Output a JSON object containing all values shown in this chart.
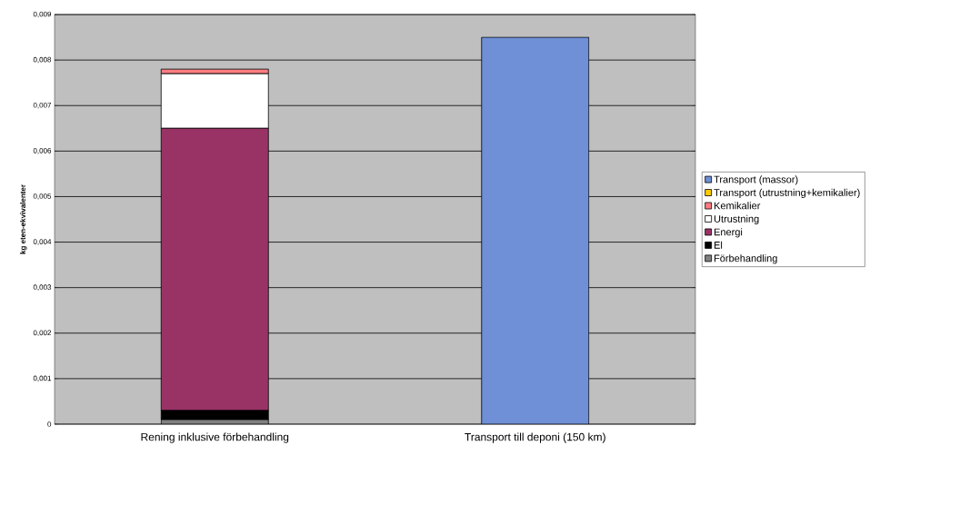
{
  "chart_data": {
    "type": "bar",
    "stacked": true,
    "ylabel": "kg eten-ekvivalenter",
    "categories": [
      "Rening inklusive förbehandling",
      "Transport till deponi (150 km)"
    ],
    "series": [
      {
        "name": "Förbehandling",
        "color": "#808080",
        "values": [
          0.0001,
          null
        ]
      },
      {
        "name": "El",
        "color": "#000000",
        "values": [
          0.0002,
          null
        ]
      },
      {
        "name": "Energi",
        "color": "#993366",
        "values": [
          0.0062,
          null
        ]
      },
      {
        "name": "Utrustning",
        "color": "#ffffff",
        "values": [
          0.0012,
          null
        ]
      },
      {
        "name": "Kemikalier",
        "color": "#ff7c80",
        "values": [
          0.0001,
          null
        ]
      },
      {
        "name": "Transport (utrustning+kemikalier)",
        "color": "#ffcc00",
        "values": [
          0,
          null
        ]
      },
      {
        "name": "Transport (massor)",
        "color": "#6f8fd6",
        "values": [
          null,
          0.0085
        ]
      }
    ],
    "ylim": [
      0,
      0.009
    ],
    "yticks": [
      0,
      {
        "value": 0.001,
        "label": "0,001"
      },
      {
        "value": 0.002,
        "label": "0,002"
      },
      {
        "value": 0.003,
        "label": "0,003"
      },
      {
        "value": 0.004,
        "label": "0,004"
      },
      {
        "value": 0.005,
        "label": "0,005"
      },
      {
        "value": 0.006,
        "label": "0,006"
      },
      {
        "value": 0.007,
        "label": "0,007"
      },
      {
        "value": 0.008,
        "label": "0,008"
      },
      {
        "value": 0.009,
        "label": "0,009"
      }
    ],
    "grid": "y",
    "legend": "right"
  }
}
